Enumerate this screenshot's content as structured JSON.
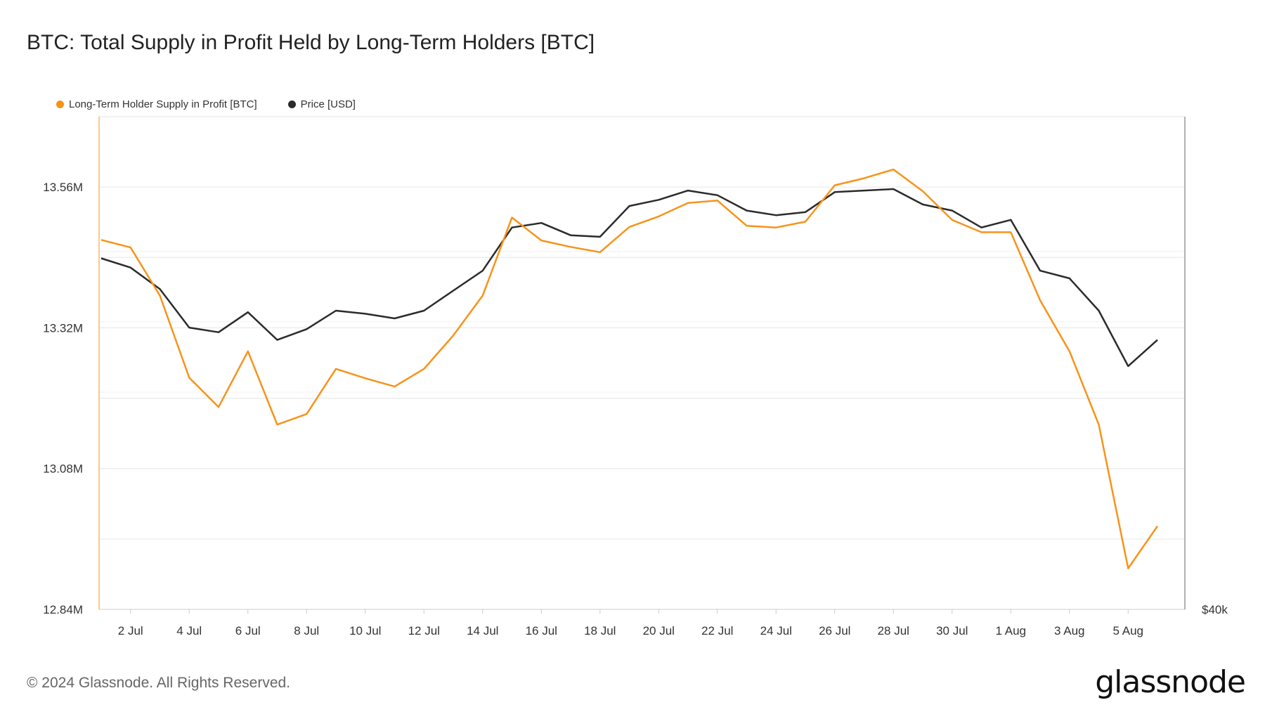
{
  "title": "BTC: Total Supply in Profit Held by Long-Term Holders [BTC]",
  "footer": "© 2024 Glassnode. All Rights Reserved.",
  "brand": "glassnode",
  "colors": {
    "supply": "#f7931a",
    "price": "#2b2b2b",
    "grid": "#e6e6e6"
  },
  "legend": [
    {
      "label": "Long-Term Holder Supply in Profit [BTC]",
      "color": "#f7931a"
    },
    {
      "label": "Price [USD]",
      "color": "#2b2b2b"
    }
  ],
  "chart_data": {
    "type": "line",
    "x_tick_labels": [
      "2 Jul",
      "4 Jul",
      "6 Jul",
      "8 Jul",
      "10 Jul",
      "12 Jul",
      "14 Jul",
      "16 Jul",
      "18 Jul",
      "20 Jul",
      "22 Jul",
      "24 Jul",
      "26 Jul",
      "28 Jul",
      "30 Jul",
      "1 Aug",
      "3 Aug",
      "5 Aug"
    ],
    "x_dates": [
      "1 Jul",
      "2 Jul",
      "3 Jul",
      "4 Jul",
      "5 Jul",
      "6 Jul",
      "7 Jul",
      "8 Jul",
      "9 Jul",
      "10 Jul",
      "11 Jul",
      "12 Jul",
      "13 Jul",
      "14 Jul",
      "15 Jul",
      "16 Jul",
      "17 Jul",
      "18 Jul",
      "19 Jul",
      "20 Jul",
      "21 Jul",
      "22 Jul",
      "23 Jul",
      "24 Jul",
      "25 Jul",
      "26 Jul",
      "27 Jul",
      "28 Jul",
      "29 Jul",
      "30 Jul",
      "31 Jul",
      "1 Aug",
      "2 Aug",
      "3 Aug",
      "4 Aug",
      "5 Aug",
      "6 Aug"
    ],
    "y_left": {
      "ticks": [
        "13.56M",
        "13.32M",
        "13.08M",
        "12.84M"
      ],
      "range": [
        12840000,
        13680000
      ]
    },
    "y_right": {
      "ticks": [
        "$40k"
      ]
    },
    "grid": true,
    "legend_position": "top-left",
    "series": [
      {
        "name": "Long-Term Holder Supply in Profit [BTC]",
        "axis": "left",
        "values": [
          13470000,
          13457000,
          13375000,
          13235000,
          13185000,
          13280000,
          13155000,
          13173000,
          13250000,
          13234000,
          13220000,
          13250000,
          13307000,
          13375000,
          13508000,
          13469000,
          13458000,
          13449000,
          13492000,
          13510000,
          13533000,
          13537000,
          13494000,
          13491000,
          13501000,
          13563000,
          13575000,
          13590000,
          13553000,
          13504000,
          13483000,
          13483000,
          13367000,
          13280000,
          13155000,
          12910000,
          12982000
        ]
      },
      {
        "name": "Price [USD]",
        "axis": "right",
        "values": [
          62800,
          62200,
          60800,
          58300,
          58000,
          59300,
          57500,
          58200,
          59400,
          59200,
          58900,
          59400,
          60700,
          62000,
          64800,
          65100,
          64300,
          64200,
          66200,
          66600,
          67200,
          66900,
          65900,
          65600,
          65800,
          67100,
          67200,
          67300,
          66300,
          65900,
          64800,
          65300,
          62000,
          61500,
          59400,
          55800,
          57500
        ]
      }
    ]
  }
}
